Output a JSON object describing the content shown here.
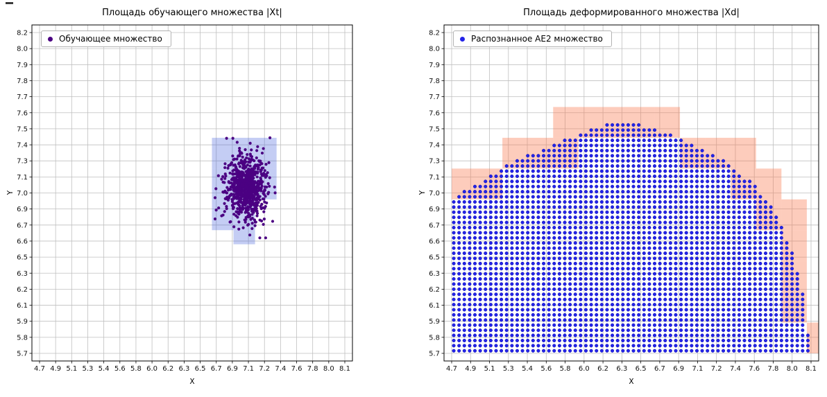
{
  "figure": {
    "background": "#ffffff",
    "grid_color": "#bfbfbf",
    "axis_color": "#000000"
  },
  "chart_data": [
    {
      "type": "scatter",
      "title": "Площадь обучающего множества |Xt|",
      "xlabel": "X",
      "ylabel": "Y",
      "legend_label": "Обучающее множество",
      "legend_marker_color": "#4b0082",
      "grid": true,
      "legend_position": "upper left",
      "xlim": [
        4.7,
        8.1
      ],
      "ylim": [
        5.7,
        8.2
      ],
      "x_tick_labels": [
        "4.7",
        "4.9",
        "5.1",
        "5.3",
        "5.4",
        "5.6",
        "5.8",
        "6.0",
        "6.2",
        "6.3",
        "6.5",
        "6.7",
        "6.9",
        "7.1",
        "7.2",
        "7.4",
        "7.6",
        "7.8",
        "8.0",
        "8.1"
      ],
      "y_tick_labels": [
        "8.2",
        "8.0",
        "7.9",
        "7.8",
        "7.7",
        "7.6",
        "7.5",
        "7.4",
        "7.3",
        "7.1",
        "7.0",
        "6.9",
        "6.7",
        "6.6",
        "6.5",
        "6.3",
        "6.2",
        "6.1",
        "5.9",
        "5.8",
        "5.7"
      ],
      "cells": {
        "color": "rgba(72,98,222,0.32)",
        "size": 0.24,
        "rects": [
          [
            6.62,
            7.14
          ],
          [
            6.86,
            7.14
          ],
          [
            7.1,
            7.14
          ],
          [
            6.62,
            6.9
          ],
          [
            6.86,
            6.9
          ],
          [
            7.1,
            6.9
          ],
          [
            6.62,
            6.66
          ],
          [
            6.86,
            6.66
          ]
        ],
        "extra": [
          [
            6.86,
            6.55,
            0.24,
            0.11
          ]
        ]
      },
      "cluster": {
        "center": [
          7.0,
          6.99
        ],
        "sigma": [
          0.115,
          0.13
        ],
        "count": 800,
        "seed": 1234567,
        "point_color": "#4b0082",
        "point_radius": 2.1
      }
    },
    {
      "type": "scatter",
      "title": "Площадь деформированного множества |Xd|",
      "xlabel": "X",
      "ylabel": "Y",
      "legend_label": "Распознанное АЕ2 множество",
      "legend_marker_color": "#2323e8",
      "grid": true,
      "legend_position": "upper left",
      "xlim": [
        4.7,
        8.1
      ],
      "ylim": [
        5.7,
        8.2
      ],
      "x_tick_labels": [
        "4.7",
        "4.9",
        "5.1",
        "5.3",
        "5.4",
        "5.6",
        "5.8",
        "6.0",
        "6.2",
        "6.3",
        "6.5",
        "6.7",
        "6.9",
        "7.1",
        "7.2",
        "7.4",
        "7.6",
        "7.8",
        "8.0",
        "8.1"
      ],
      "y_tick_labels": [
        "8.2",
        "8.0",
        "7.9",
        "7.8",
        "7.7",
        "7.6",
        "7.5",
        "7.4",
        "7.3",
        "7.1",
        "7.0",
        "6.9",
        "6.7",
        "6.6",
        "6.5",
        "6.3",
        "6.2",
        "6.1",
        "5.9",
        "5.8",
        "5.7"
      ],
      "cells": {
        "color": "rgba(250,120,80,0.38)",
        "size": 0.24,
        "origin": [
          4.7,
          5.7
        ],
        "mode": "boundary"
      },
      "dome": {
        "envelope": [
          [
            4.62,
            6.86
          ],
          [
            4.8,
            6.96
          ],
          [
            5.0,
            7.06
          ],
          [
            5.2,
            7.16
          ],
          [
            5.4,
            7.24
          ],
          [
            5.6,
            7.31
          ],
          [
            5.8,
            7.38
          ],
          [
            6.0,
            7.44
          ],
          [
            6.1,
            7.47
          ],
          [
            6.18,
            7.5
          ],
          [
            6.45,
            7.5
          ],
          [
            6.6,
            7.45
          ],
          [
            6.8,
            7.4
          ],
          [
            7.0,
            7.33
          ],
          [
            7.2,
            7.25
          ],
          [
            7.4,
            7.13
          ],
          [
            7.55,
            7.03
          ],
          [
            7.7,
            6.89
          ],
          [
            7.82,
            6.7
          ],
          [
            7.92,
            6.5
          ],
          [
            8.0,
            6.28
          ],
          [
            8.05,
            6.05
          ],
          [
            8.07,
            5.85
          ],
          [
            8.075,
            5.62
          ]
        ],
        "dot_dx": 0.05,
        "dot_dy": 0.04,
        "point_color": "#2323e8",
        "point_edge": "#1212b0",
        "point_radius": 2.3
      }
    }
  ]
}
